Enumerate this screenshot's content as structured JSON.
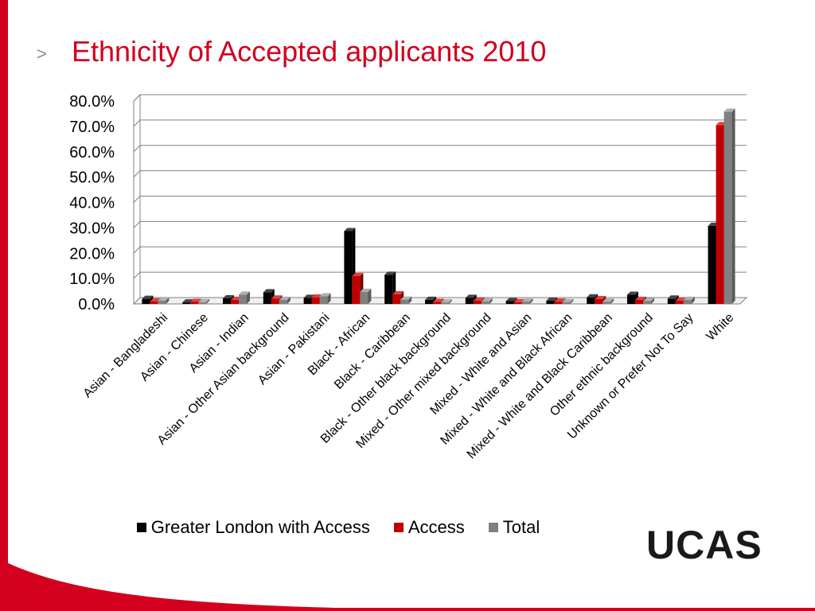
{
  "slide": {
    "chevron": ">",
    "title": "Ethnicity of Accepted applicants 2010",
    "logo_text": "UCAS"
  },
  "colors": {
    "accent": "#d2001e",
    "series": [
      "#000000",
      "#c00000",
      "#808080"
    ]
  },
  "chart_data": {
    "type": "bar",
    "title": "",
    "xlabel": "",
    "ylabel": "",
    "ylim": [
      0,
      80
    ],
    "yticks": [
      "0.0%",
      "10.0%",
      "20.0%",
      "30.0%",
      "40.0%",
      "50.0%",
      "60.0%",
      "70.0%",
      "80.0%"
    ],
    "grid": true,
    "legend_position": "bottom",
    "categories": [
      "Asian - Bangladeshi",
      "Asian - Chinese",
      "Asian - Indian",
      "Asian - Other Asian background",
      "Asian - Pakistani",
      "Black - African",
      "Black - Caribbean",
      "Black - Other black background",
      "Mixed - Other mixed background",
      "Mixed - White and Asian",
      "Mixed - White and Black African",
      "Mixed - White and Black Caribbean",
      "Other ethnic background",
      "Unknown or Prefer Not To Say",
      "White"
    ],
    "series": [
      {
        "name": "Greater London with Access",
        "values": [
          2.0,
          0.6,
          2.2,
          4.6,
          2.4,
          28.7,
          11.5,
          1.6,
          2.4,
          1.1,
          1.3,
          2.6,
          3.6,
          2.1,
          30.8
        ]
      },
      {
        "name": "Access",
        "values": [
          1.0,
          0.8,
          1.6,
          2.1,
          2.5,
          11.0,
          3.8,
          0.8,
          1.3,
          0.7,
          0.9,
          1.9,
          1.6,
          1.3,
          70.5
        ]
      },
      {
        "name": "Total",
        "values": [
          1.3,
          0.7,
          3.7,
          1.6,
          3.0,
          4.8,
          1.7,
          0.6,
          1.0,
          0.9,
          0.7,
          0.9,
          1.1,
          1.6,
          75.8
        ]
      }
    ]
  }
}
